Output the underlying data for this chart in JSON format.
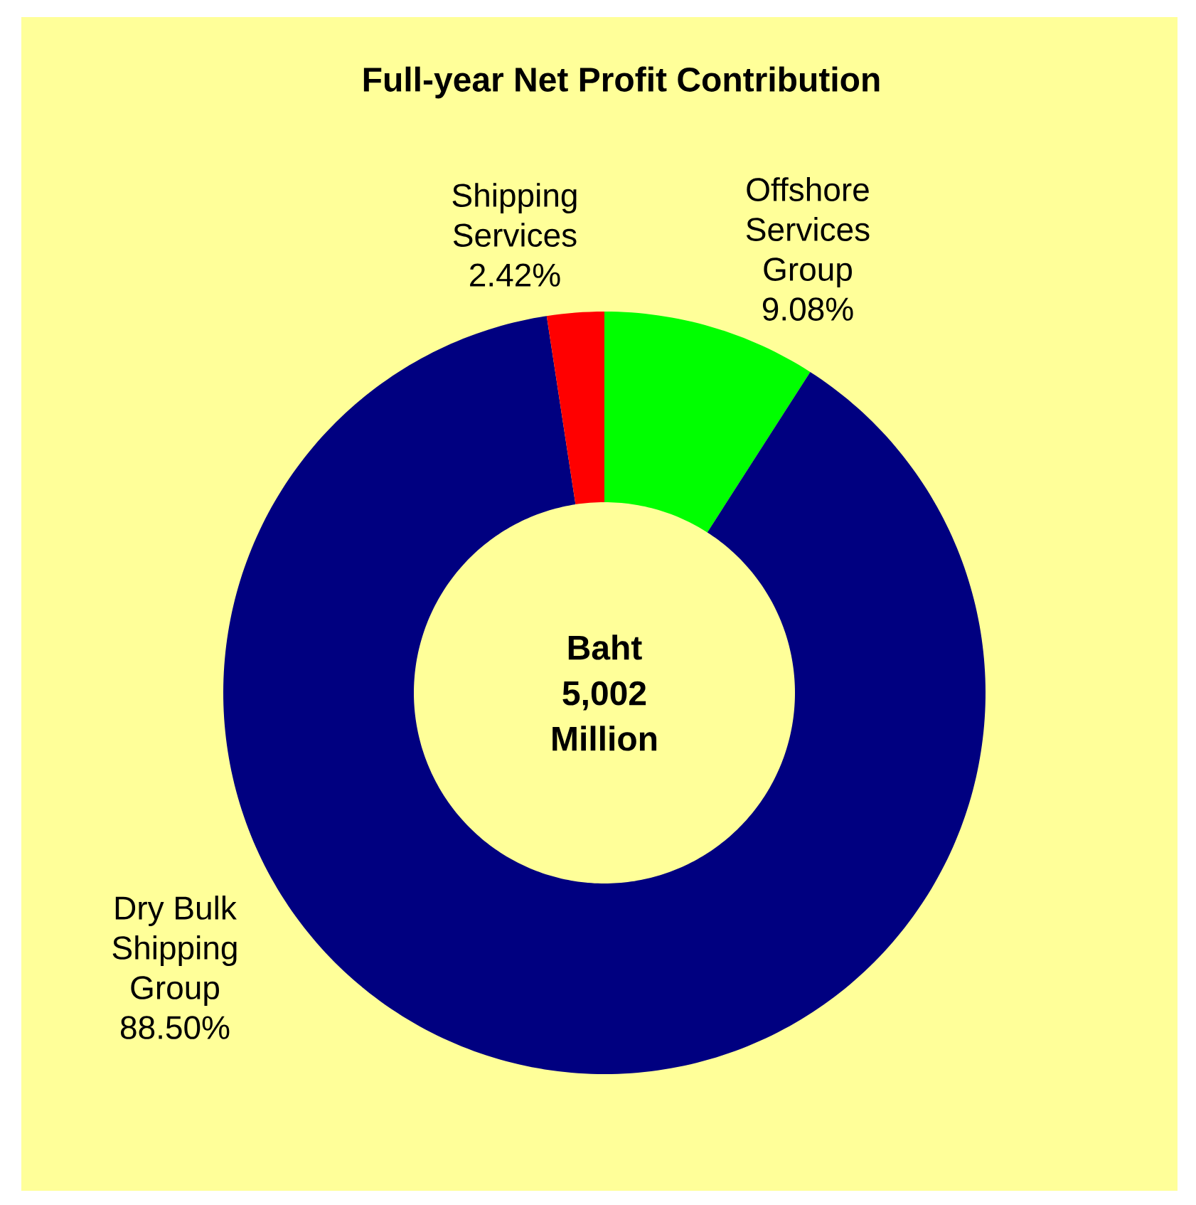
{
  "chart_data": {
    "type": "donut",
    "title": "Full-year Net Profit Contribution",
    "categories": [
      "Offshore Services Group",
      "Dry Bulk Shipping Group",
      "Shipping Services"
    ],
    "values": [
      9.08,
      88.5,
      2.42
    ],
    "colors": [
      "#00ff00",
      "#000080",
      "#ff0000"
    ],
    "value_labels": [
      "9.08%",
      "88.50%",
      "2.42%"
    ],
    "annotations": [
      "Baht 5,002 Million"
    ]
  }
}
